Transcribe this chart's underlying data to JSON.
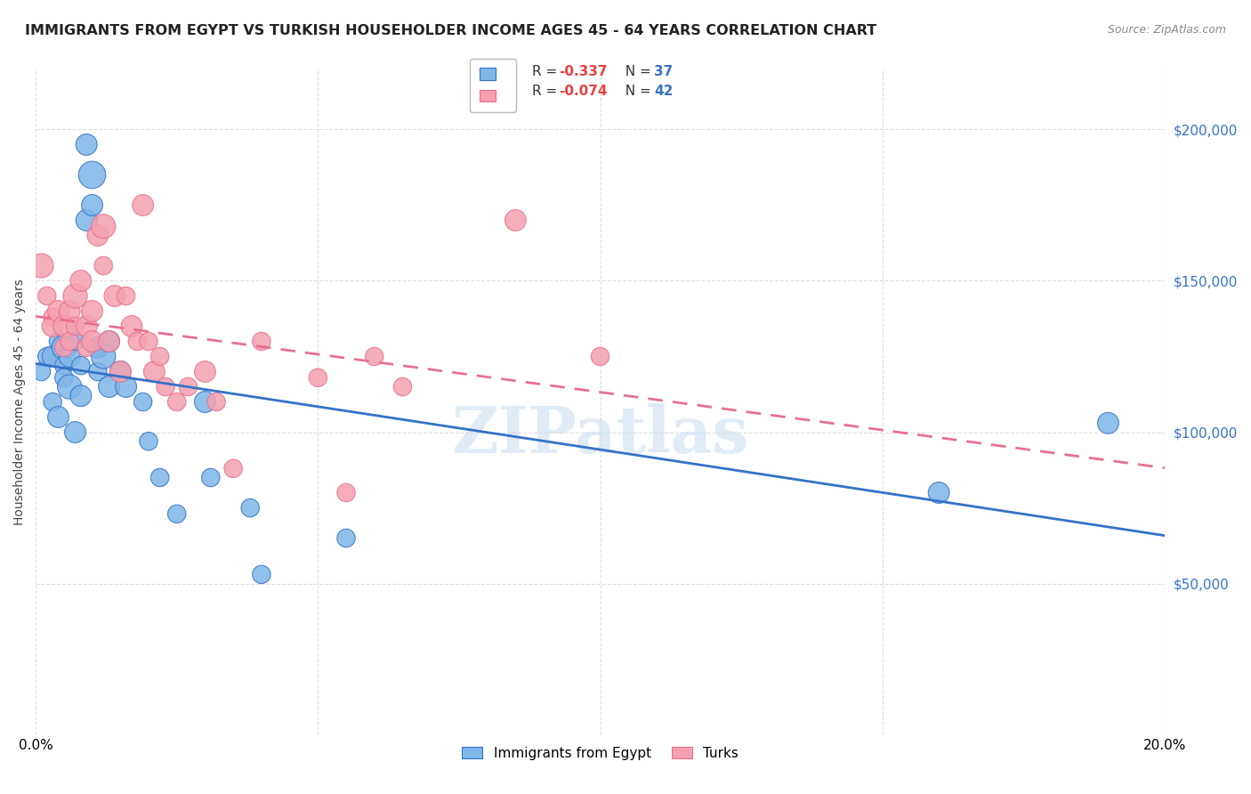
{
  "title": "IMMIGRANTS FROM EGYPT VS TURKISH HOUSEHOLDER INCOME AGES 45 - 64 YEARS CORRELATION CHART",
  "source": "Source: ZipAtlas.com",
  "ylabel": "Householder Income Ages 45 - 64 years",
  "legend_label_blue": "Immigrants from Egypt",
  "legend_label_pink": "Turks",
  "xlim": [
    0.0,
    0.2
  ],
  "ylim": [
    0,
    220000
  ],
  "ytick_labels_right": [
    "$50,000",
    "$100,000",
    "$150,000",
    "$200,000"
  ],
  "ytick_values_right": [
    50000,
    100000,
    150000,
    200000
  ],
  "watermark": "ZIPatlas",
  "background_color": "#ffffff",
  "grid_color": "#dddddd",
  "blue_color": "#7EB6E8",
  "pink_color": "#F4A0B0",
  "blue_line_color": "#3472C8",
  "pink_line_color": "#E87090",
  "egypt_x": [
    0.001,
    0.002,
    0.003,
    0.003,
    0.004,
    0.004,
    0.005,
    0.005,
    0.005,
    0.006,
    0.006,
    0.007,
    0.007,
    0.008,
    0.008,
    0.009,
    0.009,
    0.01,
    0.01,
    0.011,
    0.011,
    0.012,
    0.013,
    0.013,
    0.015,
    0.016,
    0.019,
    0.02,
    0.022,
    0.025,
    0.03,
    0.031,
    0.038,
    0.04,
    0.055,
    0.16,
    0.19
  ],
  "egypt_y": [
    120000,
    125000,
    125000,
    110000,
    130000,
    105000,
    128000,
    122000,
    118000,
    125000,
    115000,
    130000,
    100000,
    122000,
    112000,
    170000,
    195000,
    185000,
    175000,
    128000,
    120000,
    125000,
    130000,
    115000,
    120000,
    115000,
    110000,
    97000,
    85000,
    73000,
    110000,
    85000,
    75000,
    53000,
    65000,
    80000,
    103000
  ],
  "turks_x": [
    0.001,
    0.002,
    0.003,
    0.003,
    0.004,
    0.005,
    0.005,
    0.006,
    0.006,
    0.007,
    0.007,
    0.008,
    0.009,
    0.009,
    0.01,
    0.01,
    0.011,
    0.012,
    0.012,
    0.013,
    0.014,
    0.015,
    0.016,
    0.017,
    0.018,
    0.019,
    0.02,
    0.021,
    0.022,
    0.023,
    0.025,
    0.027,
    0.03,
    0.032,
    0.035,
    0.04,
    0.05,
    0.055,
    0.06,
    0.065,
    0.085,
    0.1
  ],
  "turks_y": [
    155000,
    145000,
    138000,
    135000,
    140000,
    135000,
    128000,
    140000,
    130000,
    145000,
    135000,
    150000,
    135000,
    128000,
    140000,
    130000,
    165000,
    155000,
    168000,
    130000,
    145000,
    120000,
    145000,
    135000,
    130000,
    175000,
    130000,
    120000,
    125000,
    115000,
    110000,
    115000,
    120000,
    110000,
    88000,
    130000,
    118000,
    80000,
    125000,
    115000,
    170000,
    125000
  ],
  "egypt_sizes": [
    12,
    12,
    14,
    12,
    12,
    14,
    16,
    12,
    12,
    14,
    16,
    12,
    14,
    12,
    14,
    14,
    14,
    18,
    14,
    14,
    12,
    16,
    14,
    14,
    14,
    14,
    12,
    12,
    12,
    12,
    14,
    12,
    12,
    12,
    12,
    14,
    14
  ],
  "turks_sizes": [
    16,
    12,
    12,
    14,
    14,
    14,
    12,
    14,
    12,
    16,
    12,
    14,
    14,
    12,
    14,
    14,
    14,
    12,
    16,
    14,
    14,
    14,
    12,
    14,
    12,
    14,
    12,
    14,
    12,
    12,
    12,
    12,
    14,
    12,
    12,
    12,
    12,
    12,
    12,
    12,
    14,
    12
  ]
}
